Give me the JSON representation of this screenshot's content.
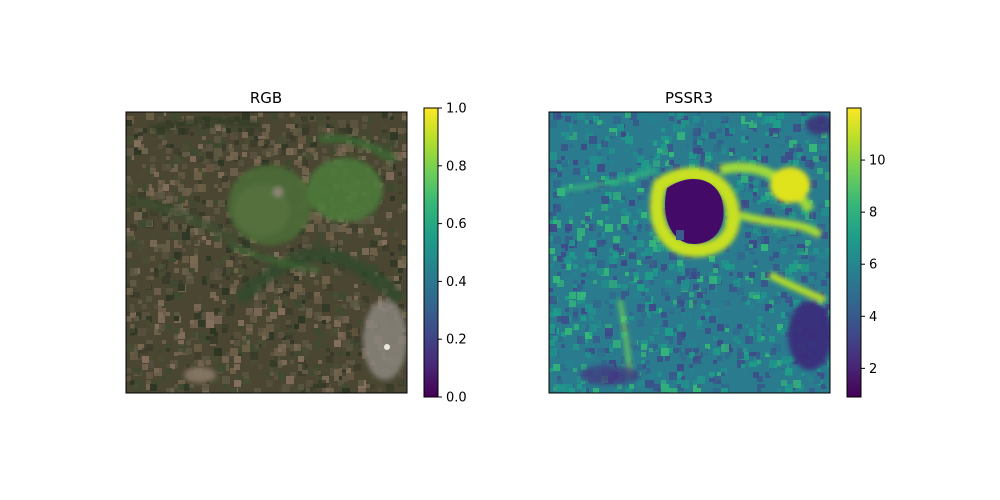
{
  "chart_data": [
    {
      "type": "heatmap",
      "title": "RGB",
      "image": "satellite-rgb-composite",
      "axes_ticks": "off",
      "colorbar": {
        "colormap": "viridis",
        "range": [
          0.0,
          1.0
        ],
        "ticks": [
          0.0,
          0.2,
          0.4,
          0.6,
          0.8,
          1.0
        ],
        "tick_labels": [
          "0.0",
          "0.2",
          "0.4",
          "0.6",
          "0.8",
          "1.0"
        ]
      }
    },
    {
      "type": "heatmap",
      "title": "PSSR3",
      "image": "pssr3-index-map",
      "axes_ticks": "off",
      "colorbar": {
        "colormap": "viridis",
        "range": [
          0.9,
          12.0
        ],
        "ticks": [
          2,
          4,
          6,
          8,
          10
        ],
        "tick_labels": [
          "2",
          "4",
          "6",
          "8",
          "10"
        ]
      }
    }
  ],
  "colors": {
    "viridis": [
      "#440154",
      "#482878",
      "#3e4a89",
      "#31688e",
      "#26828e",
      "#1f9e89",
      "#35b779",
      "#6ece58",
      "#b5de2b",
      "#fde725"
    ]
  }
}
